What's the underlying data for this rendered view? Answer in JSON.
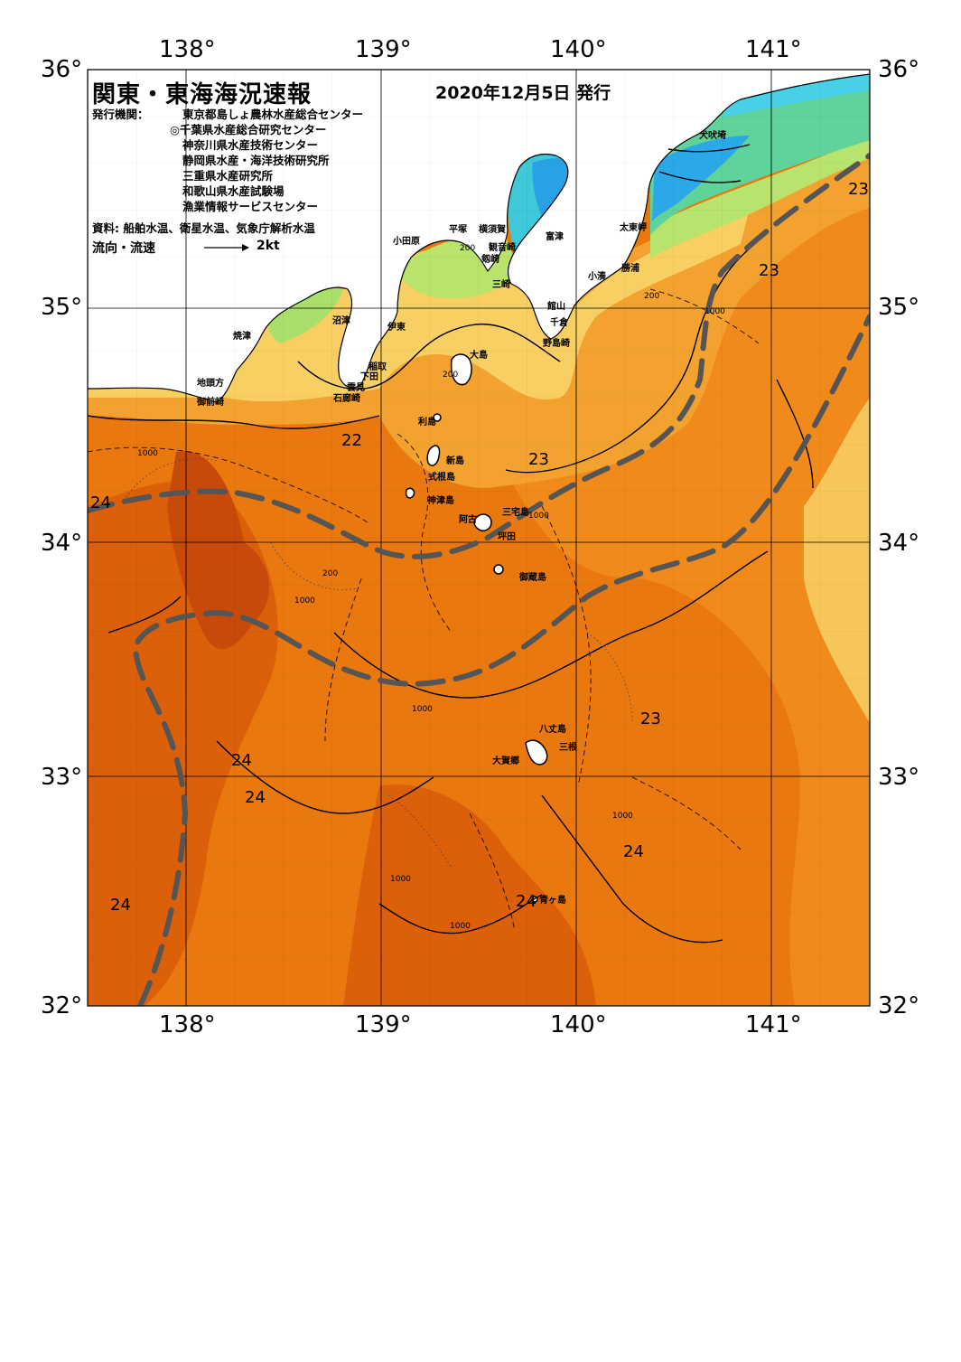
{
  "title": "関東・東海海況速報",
  "issue_date": "2020年12月5日 発行",
  "issuers_label": "発行機関：",
  "issuers": [
    "東京都島しょ農林水産総合センター",
    "◎千葉県水産総合研究センター",
    "神奈川県水産技術センター",
    "静岡県水産・海洋技術研究所",
    "三重県水産研究所",
    "和歌山県水産試験場",
    "漁業情報サービスセンター"
  ],
  "sources": "資料: 船舶水温、衛星水温、気象庁解析水温",
  "flow_legend": {
    "label": "流向・流速",
    "scale": "2kt"
  },
  "axes": {
    "lat_labels": [
      "36°",
      "35°",
      "34°",
      "33°",
      "32°"
    ],
    "lon_labels": [
      "138°",
      "139°",
      "140°",
      "141°"
    ]
  },
  "place_names": [
    "犬吠埼",
    "太東岬",
    "勝浦",
    "小湊",
    "富津",
    "横須賀",
    "観音崎",
    "平塚",
    "小田原",
    "剱崎",
    "三崎",
    "館山",
    "千倉",
    "野島崎",
    "沼津",
    "伊東",
    "焼津",
    "大島",
    "稲取",
    "下田",
    "雲見",
    "石廊崎",
    "地頭方",
    "御前崎",
    "利島",
    "新島",
    "式根島",
    "神津島",
    "三宅島",
    "阿古",
    "坪田",
    "御蔵島",
    "八丈島",
    "三根",
    "大賀郷",
    "青ヶ島"
  ],
  "isotherm_labels": [
    "24",
    "22",
    "23",
    "23",
    "23",
    "23",
    "24",
    "24",
    "24",
    "23",
    "24",
    "24"
  ],
  "depth_contours": [
    "200",
    "1000"
  ],
  "colors": {
    "warm_core": "#c84a0a",
    "warm": "#e8720f",
    "mid_warm": "#f0901c",
    "mild": "#f5ad3a",
    "cool": "#f7d36a",
    "cooler": "#cbe76a",
    "cold": "#5fd37a",
    "coldest": "#2aa8e8",
    "land": "#ffffff",
    "current_axis": "#555555"
  }
}
